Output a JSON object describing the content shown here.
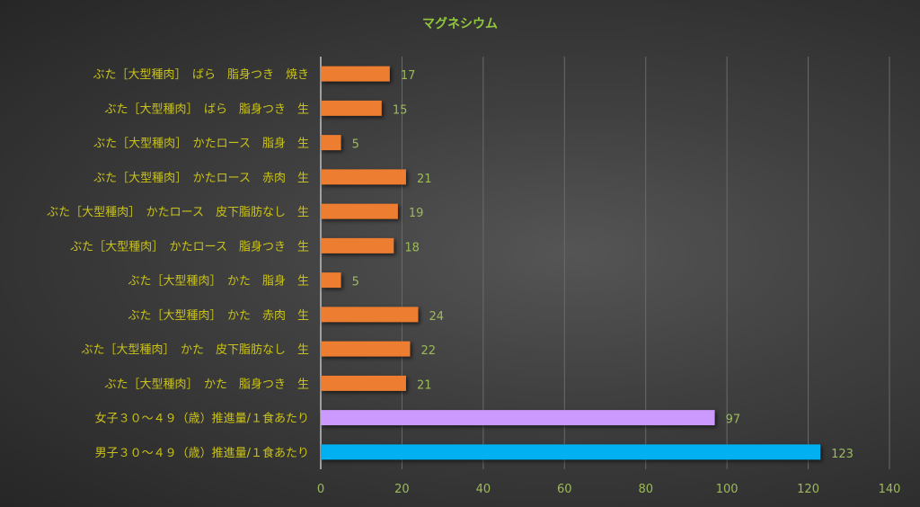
{
  "chart_data": {
    "type": "bar",
    "orientation": "horizontal",
    "title": "マグネシウム",
    "xlabel": "",
    "ylabel": "",
    "xlim": [
      0,
      140
    ],
    "x_ticks": [
      "0",
      "20",
      "40",
      "60",
      "80",
      "100",
      "120",
      "140"
    ],
    "grid": true,
    "categories": [
      "ぶた［大型種肉］　ばら　脂身つき　焼き",
      "ぶた［大型種肉］　ばら　脂身つき　生",
      "ぶた［大型種肉］　かたロース　脂身　生",
      "ぶた［大型種肉］　かたロース　赤肉　生",
      "ぶた［大型種肉］　かたロース　皮下脂肪なし　生",
      "ぶた［大型種肉］　かたロース　脂身つき　生",
      "ぶた［大型種肉］　かた　脂身　生",
      "ぶた［大型種肉］　かた　赤肉　生",
      "ぶた［大型種肉］　かた　皮下脂肪なし　生",
      "ぶた［大型種肉］　かた　脂身つき　生",
      "女子３０～４９（歳）推進量/１食あたり",
      "男子３０～４９（歳）推進量/１食あたり"
    ],
    "values": [
      17,
      15,
      5,
      21,
      19,
      18,
      5,
      24,
      22,
      21,
      97,
      123
    ],
    "colors": [
      "#ed7d31",
      "#ed7d31",
      "#ed7d31",
      "#ed7d31",
      "#ed7d31",
      "#ed7d31",
      "#ed7d31",
      "#ed7d31",
      "#ed7d31",
      "#ed7d31",
      "#cc99ff",
      "#00b0f0"
    ]
  }
}
